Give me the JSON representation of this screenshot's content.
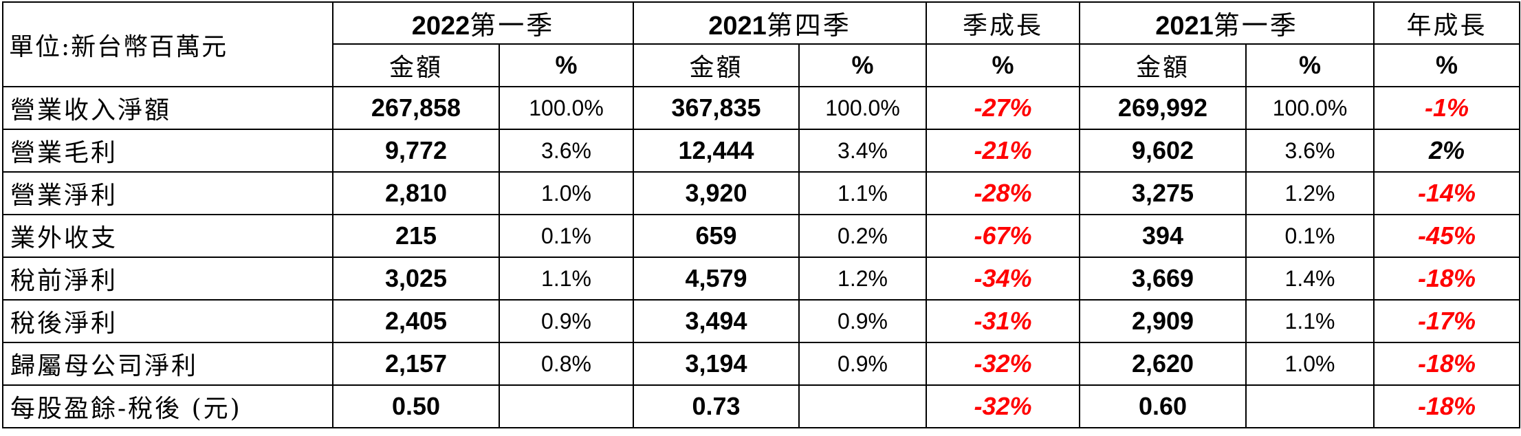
{
  "header": {
    "unit_label": "單位:新台幣百萬元",
    "periods": [
      {
        "year": "2022",
        "quarter": "第一季"
      },
      {
        "year": "2021",
        "quarter": "第四季"
      },
      {
        "year": "2021",
        "quarter": "第一季"
      }
    ],
    "qoq_label": "季成長",
    "yoy_label": "年成長",
    "amount_label": "金額",
    "pct_label": "%"
  },
  "rows": [
    {
      "label": "營業收入淨額",
      "q1_2022": "267,858",
      "q1_2022_pct": "100.0%",
      "q4_2021": "367,835",
      "q4_2021_pct": "100.0%",
      "qoq": "-27%",
      "q1_2021": "269,992",
      "q1_2021_pct": "100.0%",
      "yoy": "-1%"
    },
    {
      "label": "營業毛利",
      "q1_2022": "9,772",
      "q1_2022_pct": "3.6%",
      "q4_2021": "12,444",
      "q4_2021_pct": "3.4%",
      "qoq": "-21%",
      "q1_2021": "9,602",
      "q1_2021_pct": "3.6%",
      "yoy": "2%"
    },
    {
      "label": "營業淨利",
      "q1_2022": "2,810",
      "q1_2022_pct": "1.0%",
      "q4_2021": "3,920",
      "q4_2021_pct": "1.1%",
      "qoq": "-28%",
      "q1_2021": "3,275",
      "q1_2021_pct": "1.2%",
      "yoy": "-14%"
    },
    {
      "label": "業外收支",
      "q1_2022": "215",
      "q1_2022_pct": "0.1%",
      "q4_2021": "659",
      "q4_2021_pct": "0.2%",
      "qoq": "-67%",
      "q1_2021": "394",
      "q1_2021_pct": "0.1%",
      "yoy": "-45%"
    },
    {
      "label": "稅前淨利",
      "q1_2022": "3,025",
      "q1_2022_pct": "1.1%",
      "q4_2021": "4,579",
      "q4_2021_pct": "1.2%",
      "qoq": "-34%",
      "q1_2021": "3,669",
      "q1_2021_pct": "1.4%",
      "yoy": "-18%"
    },
    {
      "label": "稅後淨利",
      "q1_2022": "2,405",
      "q1_2022_pct": "0.9%",
      "q4_2021": "3,494",
      "q4_2021_pct": "0.9%",
      "qoq": "-31%",
      "q1_2021": "2,909",
      "q1_2021_pct": "1.1%",
      "yoy": "-17%"
    },
    {
      "label": "歸屬母公司淨利",
      "q1_2022": "2,157",
      "q1_2022_pct": "0.8%",
      "q4_2021": "3,194",
      "q4_2021_pct": "0.9%",
      "qoq": "-32%",
      "q1_2021": "2,620",
      "q1_2021_pct": "1.0%",
      "yoy": "-18%"
    },
    {
      "label": "每股盈餘-稅後 (元)",
      "q1_2022": "0.50",
      "q1_2022_pct": "",
      "q4_2021": "0.73",
      "q4_2021_pct": "",
      "qoq": "-32%",
      "q1_2021": "0.60",
      "q1_2021_pct": "",
      "yoy": "-18%"
    }
  ],
  "colors": {
    "negative": "#ff0000",
    "positive": "#000000",
    "border": "#000000"
  }
}
